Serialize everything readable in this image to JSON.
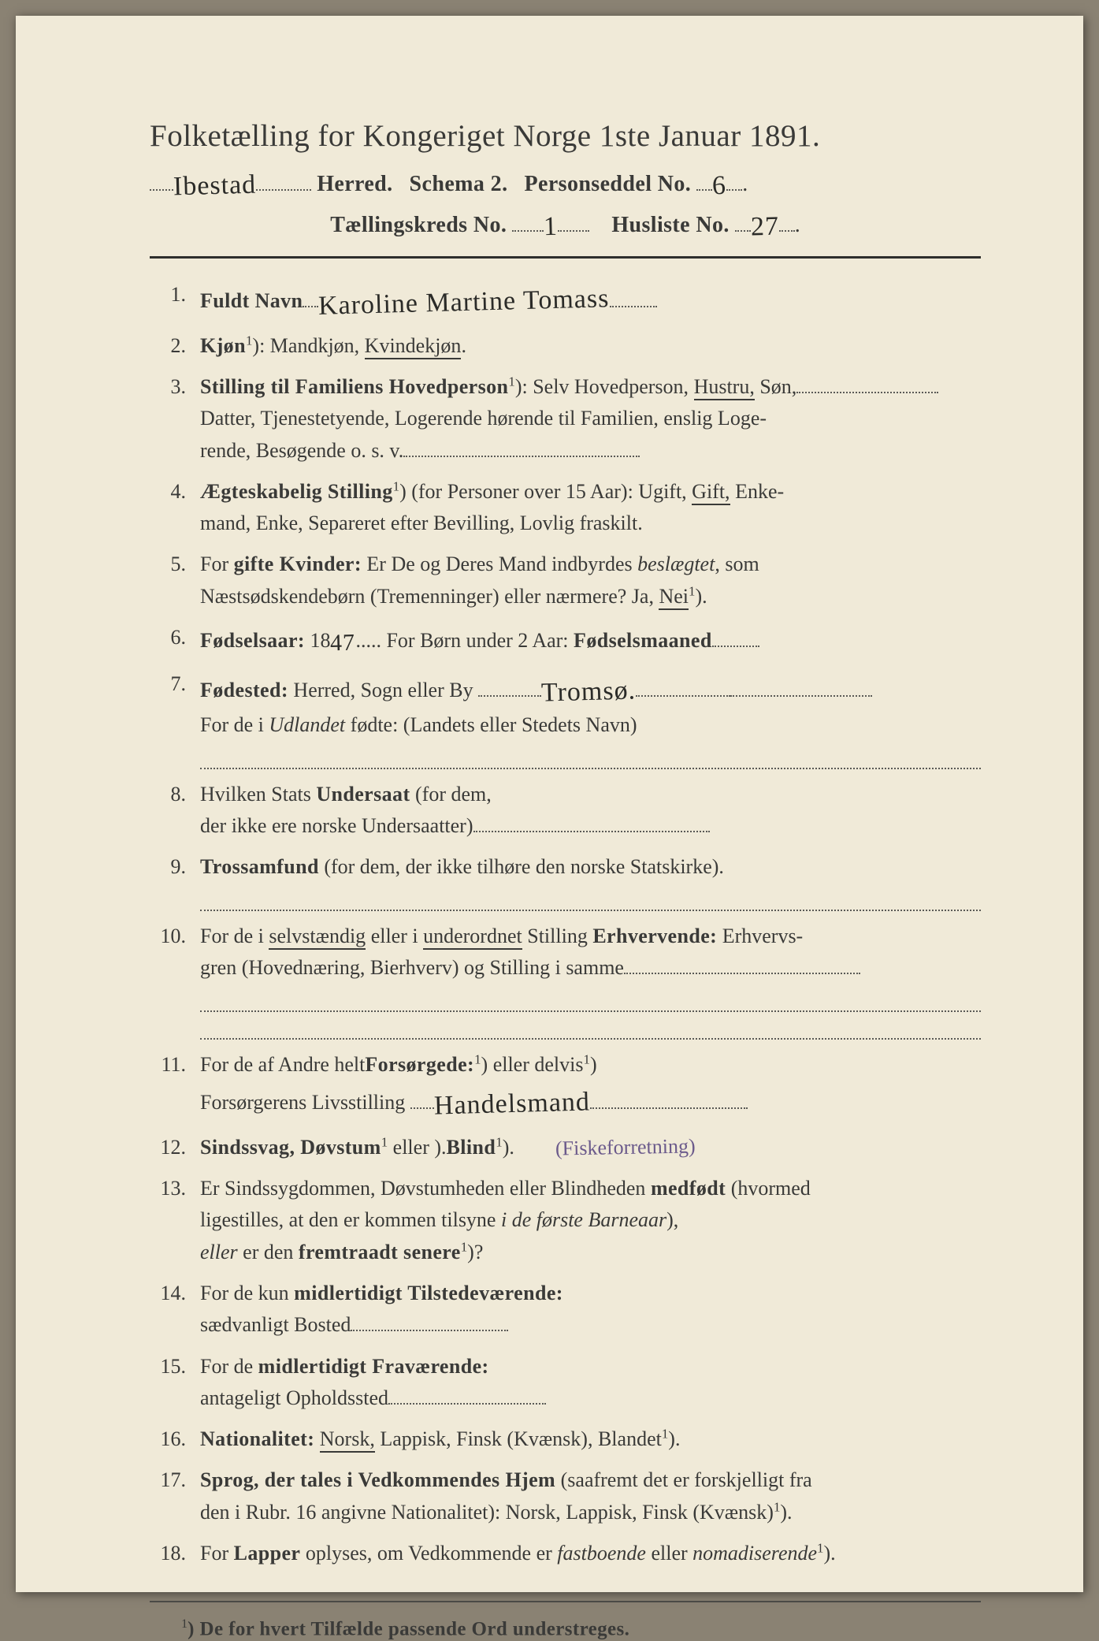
{
  "colors": {
    "paper": "#f0ead8",
    "ink": "#3a3a38",
    "rule": "#2e2e2c",
    "dots": "#5a5a56",
    "handwriting": "#2b2b28",
    "handwriting_purple": "#6b5a8b",
    "backdrop": "#8a8273"
  },
  "typography": {
    "title_pt": 39,
    "body_pt": 26,
    "handwriting_pt": 34,
    "footnote_pt": 25,
    "font_family_print": "Georgia, Times New Roman, serif",
    "font_family_hand": "Brush Script MT, cursive"
  },
  "header": {
    "title": "Folketælling for Kongeriget Norge 1ste Januar 1891.",
    "herred_handwritten": "Ibestad",
    "herred_label": "Herred.",
    "schema_label": "Schema 2.",
    "personseddel_label": "Personseddel No.",
    "personseddel_no": "6",
    "taellingskreds_label": "Tællingskreds No.",
    "taellingskreds_no": "1",
    "husliste_label": "Husliste No.",
    "husliste_no": "27"
  },
  "rows": [
    {
      "n": "1.",
      "label_bold": "Fuldt Navn",
      "hand": "Karoline Martine Tomass"
    },
    {
      "n": "2.",
      "label_bold": "Kjøn",
      "sup": "1",
      "after": "): Mandkjøn, ",
      "underlined": "Kvindekjøn",
      "tail": "."
    },
    {
      "n": "3.",
      "label_bold": "Stilling til Familiens Hovedperson",
      "sup": "1",
      "after": "): Selv Hovedperson, ",
      "underlined": "Hustru,",
      "tail": " Søn,",
      "cont": [
        "Datter, Tjenestetyende, Logerende hørende til Familien, enslig Loge-",
        "rende, Besøgende o. s. v."
      ],
      "trailing_dots": true
    },
    {
      "n": "4.",
      "label_bold": "Ægteskabelig Stilling",
      "sup": "1",
      "after": ") (for Personer over 15 Aar): Ugift, ",
      "underlined": "Gift,",
      "tail": " Enke-",
      "cont": [
        "mand, Enke, Separeret efter Bevilling, Lovlig fraskilt."
      ]
    },
    {
      "n": "5.",
      "plain_lead": "For ",
      "label_bold": "gifte Kvinder:",
      "after": " Er De og Deres Mand indbyrdes ",
      "italic": "beslægtet",
      "tail2": ", som",
      "cont": [
        "Næstsødskendebørn (Tremenninger) eller nærmere?  Ja, "
      ],
      "cont_ul": "Nei",
      "cont_sup": "1",
      "cont_tail": ")."
    },
    {
      "n": "6.",
      "label_bold": "Fødselsaar:",
      "after": " 18",
      "hand_inline": "47",
      "after2": ".....   For Børn under 2 Aar: ",
      "label_bold2": "Fødselsmaaned",
      "trailing_dots_short": true
    },
    {
      "n": "7.",
      "label_bold": "Fødested:",
      "after": " Herred, Sogn eller By ",
      "hand_inline2": "Tromsø.",
      "trailing_dots": true,
      "cont": [
        "For de i "
      ],
      "cont_italic": "Udlandet",
      "cont_after": " fødte: (Landets eller Stedets Navn)",
      "blank_line_after": true
    },
    {
      "n": "8.",
      "plain_lead": "Hvilken Stats ",
      "label_bold": "Undersaat",
      "after": " (for dem,",
      "cont": [
        "der ikke ere norske Undersaatter)"
      ],
      "trailing_dots_cont": true
    },
    {
      "n": "9.",
      "label_bold": "Trossamfund",
      "after": " (for dem, der ikke tilhøre den norske Statskirke).",
      "blank_line_after": true
    },
    {
      "n": "10.",
      "plain_lead": "For de i ",
      "ul_lead": "selvstændig",
      "mid": " eller i ",
      "ul_lead2": "underordnet",
      "after3": " Stilling ",
      "label_bold": "Erhvervende:",
      "tail": " Erhvervs-",
      "cont": [
        "gren (Hovednæring, Bierhverv) og Stilling i samme"
      ],
      "trailing_dots_cont": true,
      "blank_line_after": true,
      "extra_blank": true
    },
    {
      "n": "11.",
      "plain_lead": "For de af Andre helt",
      "sup": "1",
      "after": ") eller delvis",
      "sup2": "1",
      "after2b": ") ",
      "label_bold": "Forsørgede:",
      "cont_label": "Forsørgerens Livsstilling",
      "cont_hand": "Handelsmand",
      "trailing_dots_cont": true
    },
    {
      "n": "12.",
      "label_bold": "Sindssvag, Døvstum",
      "after": " eller ",
      "label_bold2": "Blind",
      "sup": "1",
      "tail": ").",
      "right_hand_purple": "(Fiskeforretning)"
    },
    {
      "n": "13.",
      "plain_lead": "Er Sindssygdommen, Døvstumheden eller Blindheden ",
      "label_bold": "medfødt",
      "tail": " (hvormed",
      "cont": [
        "ligestilles, at den er kommen tilsyne "
      ],
      "cont_italic": "i de første Barneaar",
      "cont_tail2": "),",
      "cont2_italic": "eller",
      "cont2_after": " er den ",
      "cont2_bold": "fremtraadt senere",
      "cont2_sup": "1",
      "cont2_tail": ")?"
    },
    {
      "n": "14.",
      "plain_lead": "For de kun ",
      "label_bold": "midlertidigt Tilstedeværende:",
      "cont_label": "sædvanligt Bosted",
      "trailing_dots_cont": true
    },
    {
      "n": "15.",
      "plain_lead": "For de ",
      "label_bold": "midlertidigt Fraværende:",
      "cont_label": "antageligt Opholdssted",
      "trailing_dots_cont": true
    },
    {
      "n": "16.",
      "label_bold": "Nationalitet:",
      "after": " ",
      "underlined": "Norsk,",
      "tail": " Lappisk, Finsk (Kvænsk), Blandet",
      "sup2": "1",
      "tail2b": ")."
    },
    {
      "n": "17.",
      "label_bold": "Sprog, der tales i Vedkommendes Hjem",
      "after": " (saafremt det er forskjelligt fra",
      "cont": [
        "den i Rubr. 16 angivne Nationalitet): Norsk, Lappisk, Finsk (Kvænsk)"
      ],
      "cont_sup": "1",
      "cont_tail": ")."
    },
    {
      "n": "18.",
      "plain_lead": "For ",
      "label_bold": "Lapper",
      "after": " oplyses, om Vedkommende er ",
      "italic": "fastboende",
      "mid2": " eller ",
      "italic2": "nomadiserende",
      "sup2": "1",
      "tail2b": ")."
    }
  ],
  "footnote": {
    "sup": "1",
    "text": ") De for hvert Tilfælde passende Ord understreges."
  }
}
